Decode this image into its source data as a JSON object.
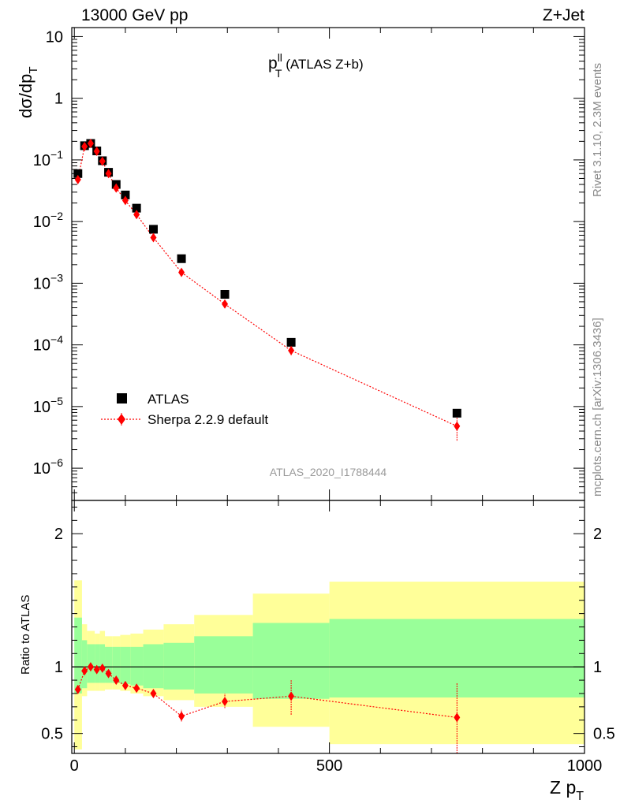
{
  "header": {
    "energy_label": "13000 GeV pp",
    "process_label": "Z+Jet"
  },
  "side_labels": {
    "rivet": "Rivet 3.1.10,  2.3M events",
    "source": "mcplots.cern.ch [arXiv:1306.3436]"
  },
  "chart_data": [
    {
      "type": "scatter",
      "panel": "main",
      "title_main": "p",
      "title_sup": "ll",
      "title_sub": "T",
      "title_rest": " (ATLAS Z+b)",
      "ylabel_main": "dσ/dp",
      "ylabel_sub": "T",
      "analysis_label": "ATLAS_2020_I1788444",
      "yscale": "log",
      "xlim": [
        -5,
        1000
      ],
      "ylim": [
        3e-07,
        14
      ],
      "y_ticks": [
        {
          "value": 10,
          "label": "10"
        },
        {
          "value": 1,
          "label": "1"
        },
        {
          "value": 0.1,
          "base": "10",
          "exp": "−1"
        },
        {
          "value": 0.01,
          "base": "10",
          "exp": "−2"
        },
        {
          "value": 0.001,
          "base": "10",
          "exp": "−3"
        },
        {
          "value": 0.0001,
          "base": "10",
          "exp": "−4"
        },
        {
          "value": 1e-05,
          "base": "10",
          "exp": "−5"
        },
        {
          "value": 1e-06,
          "base": "10",
          "exp": "−6"
        }
      ],
      "legend_position": "bottom-left",
      "series": [
        {
          "name": "ATLAS",
          "color": "#000000",
          "marker": "square",
          "x": [
            7,
            20,
            32,
            44,
            55,
            67,
            82,
            100,
            122,
            155,
            210,
            295,
            425,
            750
          ],
          "y": [
            0.06,
            0.17,
            0.185,
            0.14,
            0.097,
            0.063,
            0.04,
            0.027,
            0.0165,
            0.0075,
            0.0025,
            0.00066,
            0.00011,
            7.8e-06
          ]
        },
        {
          "name": "Sherpa 2.2.9 default",
          "color": "#ff0000",
          "marker": "diamond",
          "line": "dotted",
          "x": [
            7,
            20,
            32,
            44,
            55,
            67,
            82,
            100,
            122,
            155,
            210,
            295,
            425,
            750
          ],
          "y": [
            0.048,
            0.165,
            0.185,
            0.138,
            0.095,
            0.06,
            0.035,
            0.022,
            0.013,
            0.0055,
            0.0015,
            0.00046,
            8.1e-05,
            4.8e-06
          ],
          "y_err_low": [
            0.044,
            0.16,
            0.18,
            0.134,
            0.092,
            0.058,
            0.034,
            0.021,
            0.012,
            0.0051,
            0.00138,
            0.00042,
            6.8e-05,
            2.8e-06
          ],
          "y_err_high": [
            0.052,
            0.17,
            0.19,
            0.142,
            0.098,
            0.062,
            0.036,
            0.023,
            0.014,
            0.0059,
            0.00162,
            0.0005,
            9.4e-05,
            6.8e-06
          ]
        }
      ]
    },
    {
      "type": "scatter",
      "panel": "ratio",
      "ylabel": "Ratio to ATLAS",
      "xlabel_main": "Z p",
      "xlabel_sub": "T",
      "xlim": [
        -5,
        1000
      ],
      "ylim": [
        0.35,
        2.25
      ],
      "x_ticks": [
        0,
        500,
        1000
      ],
      "y_ticks": [
        0.5,
        1,
        2
      ],
      "bands": {
        "edges": [
          0,
          15,
          25,
          40,
          50,
          60,
          75,
          90,
          110,
          135,
          175,
          235,
          350,
          500,
          1000
        ],
        "inner_low": [
          0.8,
          0.84,
          0.88,
          0.88,
          0.88,
          0.88,
          0.88,
          0.87,
          0.86,
          0.84,
          0.83,
          0.8,
          0.76,
          0.77
        ],
        "inner_high": [
          1.37,
          1.2,
          1.17,
          1.17,
          1.17,
          1.15,
          1.15,
          1.15,
          1.15,
          1.17,
          1.18,
          1.23,
          1.33,
          1.36
        ],
        "outer_low": [
          0.38,
          0.78,
          0.82,
          0.82,
          0.82,
          0.83,
          0.83,
          0.82,
          0.8,
          0.78,
          0.75,
          0.7,
          0.55,
          0.42
        ],
        "outer_high": [
          1.65,
          1.32,
          1.27,
          1.25,
          1.27,
          1.23,
          1.23,
          1.24,
          1.25,
          1.28,
          1.32,
          1.39,
          1.55,
          1.64
        ],
        "inner_color": "#99ff99",
        "outer_color": "#ffff99"
      },
      "series": [
        {
          "name": "Sherpa 2.2.9 default",
          "color": "#ff0000",
          "x": [
            7,
            20,
            32,
            44,
            55,
            67,
            82,
            100,
            122,
            155,
            210,
            295,
            425,
            750
          ],
          "y": [
            0.83,
            0.97,
            1.0,
            0.98,
            0.99,
            0.95,
            0.9,
            0.86,
            0.84,
            0.8,
            0.63,
            0.74,
            0.78,
            0.62
          ],
          "y_err_low": [
            0.81,
            0.96,
            0.99,
            0.97,
            0.98,
            0.94,
            0.89,
            0.85,
            0.82,
            0.78,
            0.59,
            0.69,
            0.64,
            0.35
          ],
          "y_err_high": [
            0.85,
            0.98,
            1.01,
            0.99,
            1.0,
            0.96,
            0.91,
            0.87,
            0.86,
            0.82,
            0.68,
            0.8,
            0.9,
            0.88
          ]
        }
      ]
    }
  ]
}
